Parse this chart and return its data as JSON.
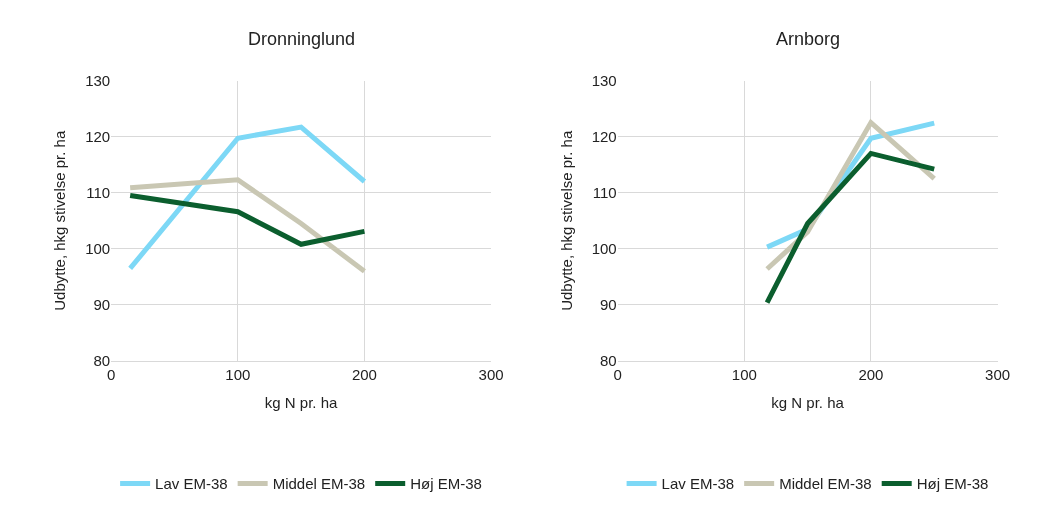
{
  "chart_data": [
    {
      "type": "line",
      "title": "Dronninglund",
      "xlabel": "kg N pr. ha",
      "ylabel": "Udbytte, hkg stivelse pr. ha",
      "x": [
        15,
        100,
        150,
        200
      ],
      "series": [
        {
          "name": "Lav EM-38",
          "color": "#7dd8f6",
          "values": [
            96.5,
            119.7,
            121.7,
            112
          ]
        },
        {
          "name": "Middel EM-38",
          "color": "#c9c7b3",
          "values": [
            110.9,
            112.3,
            104.5,
            96
          ]
        },
        {
          "name": "Høj EM-38",
          "color": "#0b5e2e",
          "values": [
            109.5,
            106.6,
            100.8,
            103.1
          ]
        }
      ],
      "xlim": [
        0,
        300
      ],
      "xticks": [
        0,
        100,
        200,
        300
      ],
      "ylim": [
        80,
        130
      ],
      "yticks": [
        80,
        90,
        100,
        110,
        120,
        130
      ],
      "grid": true,
      "legend": "bottom",
      "marker": "none",
      "line_style": "solid"
    },
    {
      "type": "line",
      "title": "Arnborg",
      "xlabel": "kg N pr. ha",
      "ylabel": "Udbytte, hkg stivelse pr. ha",
      "x": [
        118,
        150,
        200,
        250
      ],
      "series": [
        {
          "name": "Lav EM-38",
          "color": "#7dd8f6",
          "values": [
            100.3,
            103.5,
            119.7,
            122.4
          ]
        },
        {
          "name": "Middel EM-38",
          "color": "#c9c7b3",
          "values": [
            96.4,
            103,
            122.5,
            112.5
          ]
        },
        {
          "name": "Høj EM-38",
          "color": "#0b5e2e",
          "values": [
            90.4,
            104.5,
            117,
            114.2
          ]
        }
      ],
      "xlim": [
        0,
        300
      ],
      "xticks": [
        0,
        100,
        200,
        300
      ],
      "ylim": [
        80,
        130
      ],
      "yticks": [
        80,
        90,
        100,
        110,
        120,
        130
      ],
      "grid": true,
      "legend": "bottom",
      "marker": "none",
      "line_style": "solid"
    }
  ]
}
